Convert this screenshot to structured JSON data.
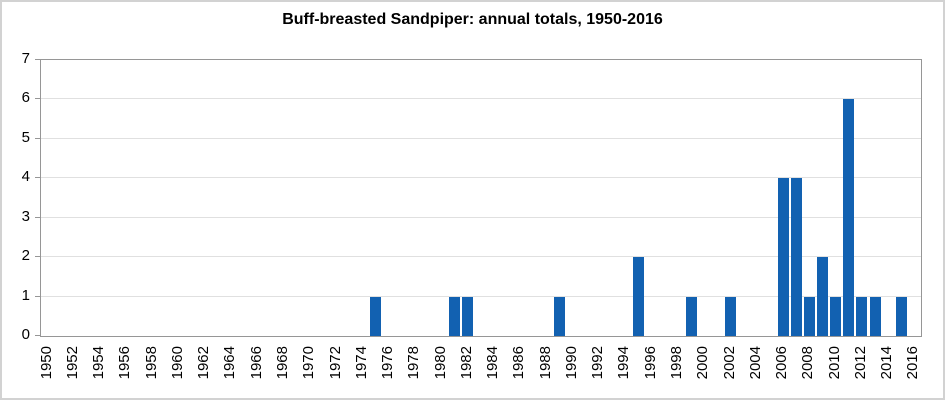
{
  "window": {
    "background": "#ffffff",
    "border_color": "#d2d2d2"
  },
  "chart_data": {
    "type": "bar",
    "title": "Buff-breasted Sandpiper: annual totals, 1950-2016",
    "xlabel": "",
    "ylabel": "",
    "x_start": 1950,
    "x_end": 2016,
    "x_tick_step": 2,
    "x_tick_labels": [
      "1950",
      "1952",
      "1954",
      "1956",
      "1958",
      "1960",
      "1962",
      "1964",
      "1966",
      "1968",
      "1970",
      "1972",
      "1974",
      "1976",
      "1978",
      "1980",
      "1982",
      "1984",
      "1986",
      "1988",
      "1990",
      "1992",
      "1994",
      "1996",
      "1998",
      "2000",
      "2002",
      "2004",
      "2006",
      "2008",
      "2010",
      "2012",
      "2014",
      "2016"
    ],
    "y_tick_labels": [
      "0",
      "1",
      "2",
      "3",
      "4",
      "5",
      "6",
      "7"
    ],
    "ylim": [
      0,
      7
    ],
    "grid": true,
    "legend": "none",
    "bar_color": "#1261b1",
    "gridline_color": "#e0e0e0",
    "axis_color": "#969696",
    "bars": [
      {
        "year": 1975,
        "value": 1
      },
      {
        "year": 1981,
        "value": 1
      },
      {
        "year": 1982,
        "value": 1
      },
      {
        "year": 1989,
        "value": 1
      },
      {
        "year": 1995,
        "value": 2
      },
      {
        "year": 1999,
        "value": 1
      },
      {
        "year": 2002,
        "value": 1
      },
      {
        "year": 2006,
        "value": 4
      },
      {
        "year": 2007,
        "value": 4
      },
      {
        "year": 2008,
        "value": 1
      },
      {
        "year": 2009,
        "value": 2
      },
      {
        "year": 2010,
        "value": 1
      },
      {
        "year": 2011,
        "value": 6
      },
      {
        "year": 2012,
        "value": 1
      },
      {
        "year": 2013,
        "value": 1
      },
      {
        "year": 2015,
        "value": 1
      }
    ]
  }
}
